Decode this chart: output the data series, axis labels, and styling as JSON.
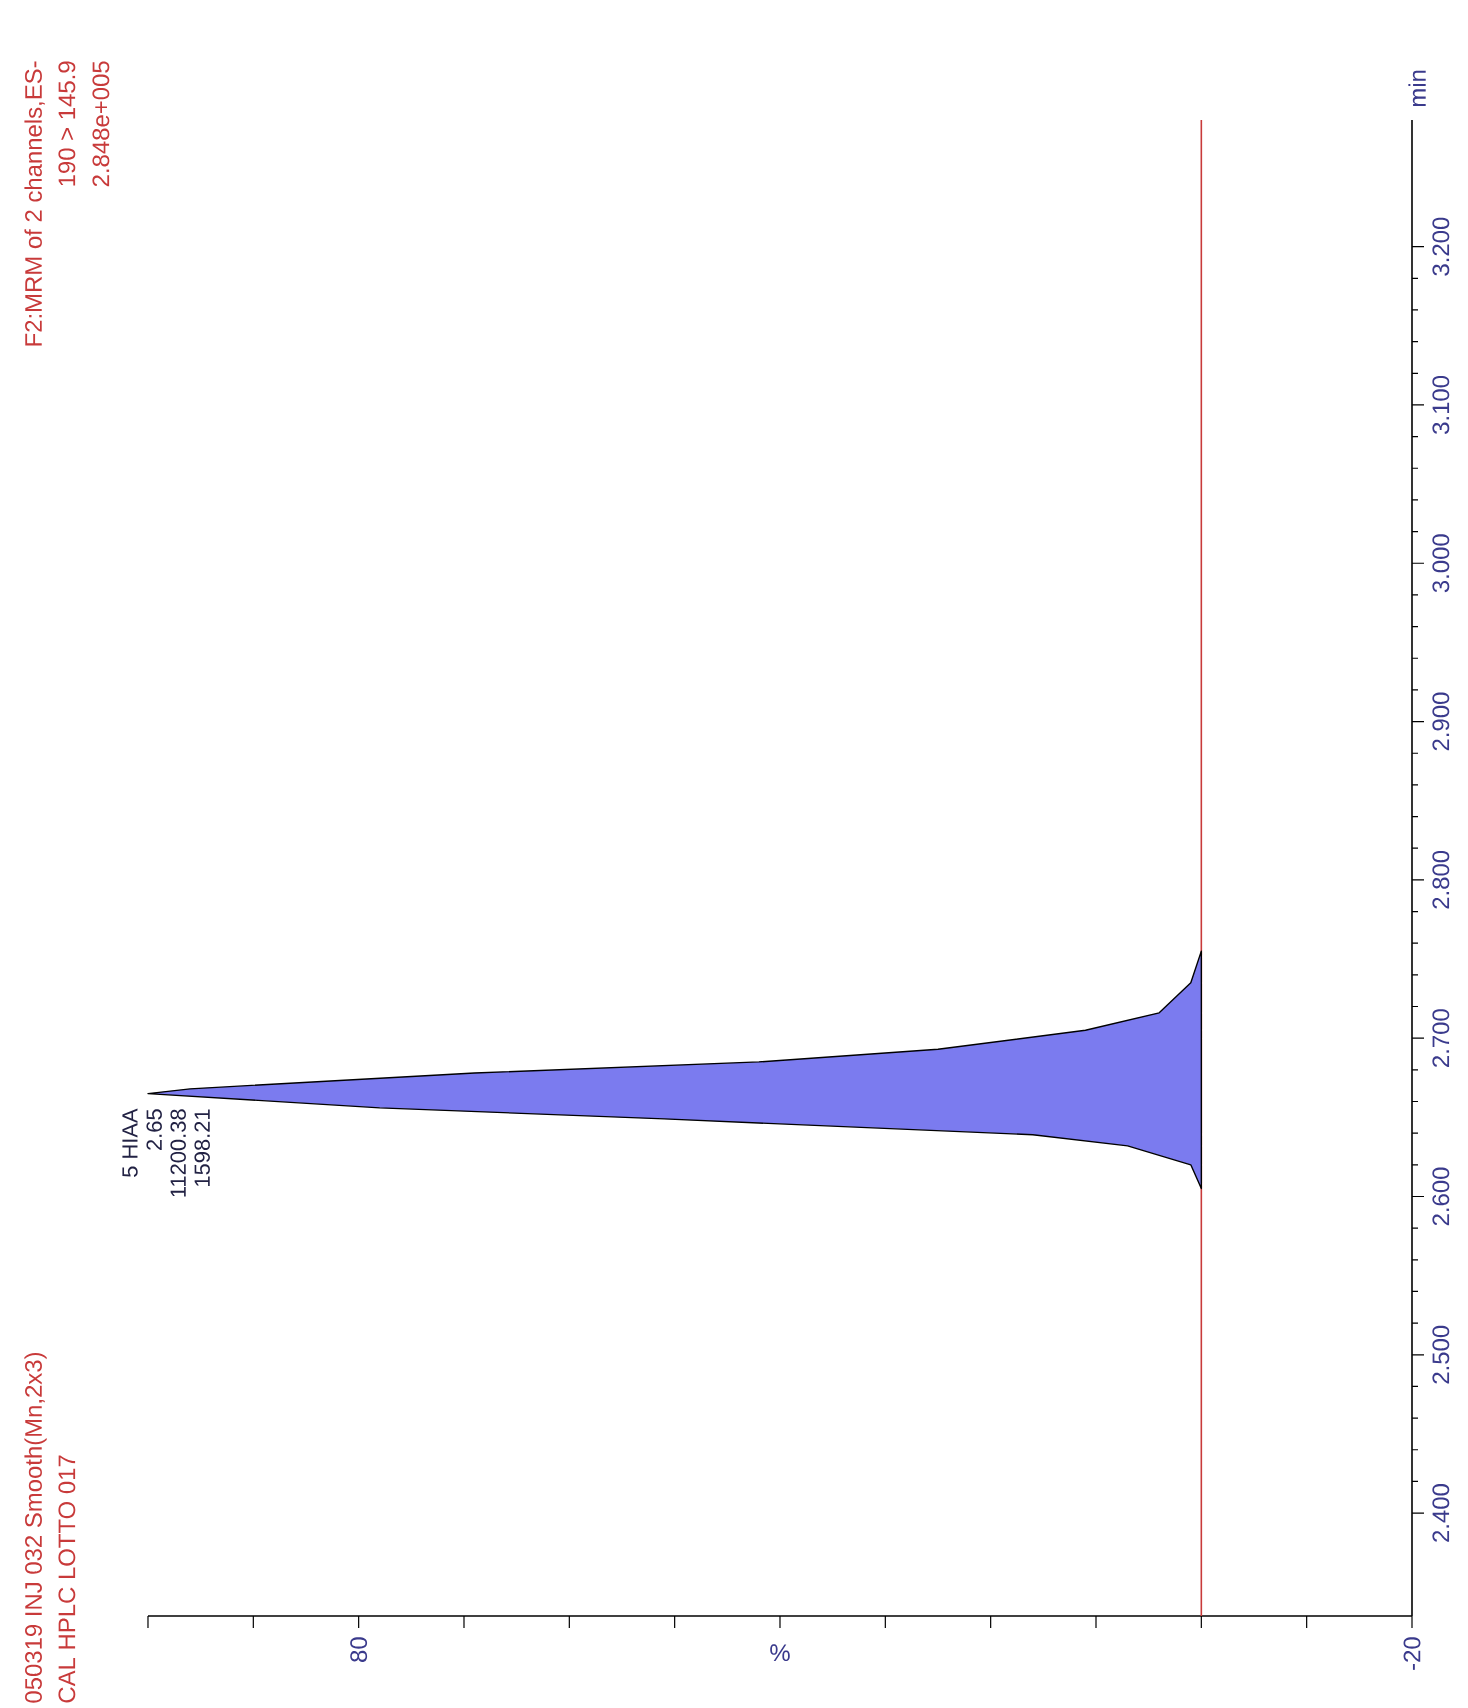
{
  "chart_data": {
    "type": "line",
    "title": "050319 INJ 032 Smooth(Mn,2x3)",
    "subtitle": "CAL HPLC LOTTO 017",
    "xlabel": "%",
    "ylabel": "min",
    "annotations": [
      "F2:MRM of 2 channels,ES-",
      "190 > 145.9",
      "2.848e+005",
      "5 HIAA",
      "2.65",
      "11200.38",
      "1598.21"
    ],
    "xlim": [
      100,
      -20
    ],
    "ylim": [
      2.335,
      3.28
    ],
    "xticks": [
      {
        "value": 100,
        "label": null
      },
      {
        "value": 90,
        "label": null
      },
      80,
      {
        "value": 70,
        "label": null
      },
      {
        "value": 60,
        "label": null
      },
      {
        "value": 50,
        "label": null
      },
      {
        "value": 40,
        "label": null
      },
      {
        "value": 30,
        "label": null
      },
      {
        "value": 20,
        "label": null
      },
      {
        "value": 10,
        "label": null
      },
      {
        "value": 0,
        "label": null
      },
      {
        "value": -10,
        "label": null
      },
      -20
    ],
    "yticks": [
      {
        "value": 2.4,
        "label": "2.400"
      },
      {
        "value": 2.5,
        "label": "2.500"
      },
      {
        "value": 2.6,
        "label": "2.600"
      },
      {
        "value": 2.7,
        "label": "2.700"
      },
      {
        "value": 2.8,
        "label": "2.800"
      },
      {
        "value": 2.9,
        "label": "2.900"
      },
      {
        "value": 3.0,
        "label": "3.000"
      },
      {
        "value": 3.1,
        "label": "3.100"
      },
      {
        "value": 3.2,
        "label": "3.200"
      }
    ],
    "series": [
      {
        "type": "area",
        "color": "#7b7bef",
        "x": [
          0,
          1,
          7,
          16,
          51,
          78,
          100,
          96,
          69,
          42,
          25,
          11,
          4,
          1,
          0
        ],
        "values": [
          2.605,
          2.62,
          2.632,
          2.639,
          2.649,
          2.656,
          2.665,
          2.668,
          2.678,
          2.685,
          2.693,
          2.705,
          2.716,
          2.735,
          2.755
        ]
      }
    ],
    "ref_lines": [
      {
        "axis": "x",
        "value": 0,
        "color": "#c83a3a"
      }
    ]
  }
}
